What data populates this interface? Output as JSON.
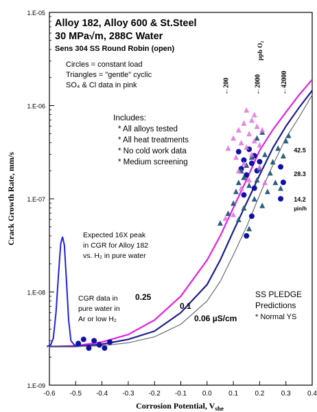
{
  "chart_data": {
    "type": "scatter",
    "title_lines": [
      "Alloy 182, Alloy 600 & St.Steel",
      "30 MPa√m, 288C Water"
    ],
    "subtitle": "Sens 304 SS Round Robin (open)",
    "legend_notes": [
      "Circles = constant load",
      "Triangles = \"gentle\" cyclic",
      "SO₄ & Cl data in pink"
    ],
    "includes_title": "Includes:",
    "includes_items": [
      "All alloys tested",
      "All heat treatments",
      "No cold work data",
      "Medium screening"
    ],
    "xlabel": "Corrosion Potential, V",
    "xlabel_sub": "she",
    "ylabel": "Crack Growth Rate, mm/s",
    "x_ticks": [
      "-0.6",
      "-0.5",
      "-0.4",
      "-0.3",
      "-0.2",
      "-0.1",
      "0.0",
      "0.1",
      "0.2",
      "0.3",
      "0.4"
    ],
    "y_ticks": [
      "1.E-09",
      "1.E-08",
      "1.E-07",
      "1.E-06",
      "1.E-05"
    ],
    "xlim": [
      -0.6,
      0.4
    ],
    "ylim_log10": [
      -9,
      -5
    ],
    "ppb_label": "ppb O₂",
    "ppb_markers": [
      {
        "label": "200",
        "x": 0.07
      },
      {
        "label": "2000",
        "x": 0.19
      },
      {
        "label": "42000",
        "x": 0.29
      }
    ],
    "curves": [
      {
        "label": "0.25",
        "color": "#e020e0",
        "points": [
          [
            -0.6,
            2.6e-09
          ],
          [
            -0.5,
            2.65e-09
          ],
          [
            -0.4,
            2.9e-09
          ],
          [
            -0.3,
            3.5e-09
          ],
          [
            -0.2,
            5e-09
          ],
          [
            -0.1,
            9e-09
          ],
          [
            0.0,
            2.2e-08
          ],
          [
            0.05,
            4e-08
          ],
          [
            0.1,
            8e-08
          ],
          [
            0.15,
            1.6e-07
          ],
          [
            0.2,
            3.3e-07
          ],
          [
            0.25,
            5.5e-07
          ],
          [
            0.3,
            8.5e-07
          ],
          [
            0.35,
            1.3e-06
          ],
          [
            0.4,
            1.9e-06
          ]
        ]
      },
      {
        "label": "0.1",
        "color": "#1c1c8c",
        "points": [
          [
            -0.6,
            2.6e-09
          ],
          [
            -0.5,
            2.6e-09
          ],
          [
            -0.4,
            2.75e-09
          ],
          [
            -0.3,
            3.1e-09
          ],
          [
            -0.2,
            3.8e-09
          ],
          [
            -0.1,
            6e-09
          ],
          [
            0.0,
            1.2e-08
          ],
          [
            0.05,
            2.2e-08
          ],
          [
            0.1,
            4.5e-08
          ],
          [
            0.15,
            9e-08
          ],
          [
            0.2,
            1.8e-07
          ],
          [
            0.25,
            3.5e-07
          ],
          [
            0.3,
            6e-07
          ],
          [
            0.35,
            9.5e-07
          ],
          [
            0.4,
            1.45e-06
          ]
        ]
      },
      {
        "label": "0.06 µS/cm",
        "color": "#6a6a6a",
        "points": [
          [
            -0.6,
            2.6e-09
          ],
          [
            -0.5,
            2.6e-09
          ],
          [
            -0.4,
            2.65e-09
          ],
          [
            -0.3,
            2.85e-09
          ],
          [
            -0.2,
            3.3e-09
          ],
          [
            -0.1,
            4.5e-09
          ],
          [
            0.0,
            8e-09
          ],
          [
            0.05,
            1.3e-08
          ],
          [
            0.1,
            2.5e-08
          ],
          [
            0.15,
            5e-08
          ],
          [
            0.2,
            1.1e-07
          ],
          [
            0.25,
            2.3e-07
          ],
          [
            0.3,
            4.5e-07
          ],
          [
            0.35,
            7.5e-07
          ],
          [
            0.4,
            1.3e-06
          ]
        ]
      }
    ],
    "peak_curve": {
      "color": "#2020e0",
      "points": [
        [
          -0.61,
          2.6e-09
        ],
        [
          -0.595,
          2.7e-09
        ],
        [
          -0.585,
          3.2e-09
        ],
        [
          -0.575,
          6e-09
        ],
        [
          -0.565,
          1.6e-08
        ],
        [
          -0.557,
          3.3e-08
        ],
        [
          -0.55,
          3.9e-08
        ],
        [
          -0.543,
          3.2e-08
        ],
        [
          -0.535,
          1.3e-08
        ],
        [
          -0.527,
          5e-09
        ],
        [
          -0.518,
          3e-09
        ],
        [
          -0.505,
          2.7e-09
        ],
        [
          -0.49,
          2.65e-09
        ]
      ]
    },
    "peak_annotation": [
      "Expected 16X peak",
      "in CGR for Alloy 182",
      "vs. H₂ in pure water"
    ],
    "pure_water_annotation": [
      "CGR data in",
      "pure water in",
      "Ar or low H₂"
    ],
    "pledge_annotation": [
      "SS PLEDGE",
      "Predictions",
      "* Normal YS"
    ],
    "right_labels": [
      {
        "text": "42.5",
        "x": 0.33,
        "y": 3.3e-07
      },
      {
        "text": "28.3",
        "x": 0.33,
        "y": 1.85e-07
      },
      {
        "text": "14.2",
        "x": 0.33,
        "y": 9.8e-08
      },
      {
        "text": "µin/h",
        "x": 0.33,
        "y": 7.9e-08
      }
    ],
    "series": [
      {
        "name": "",
        "marker": "circle",
        "color": "#1010a8",
        "points": [
          [
            -0.49,
            2.8e-09
          ],
          [
            -0.47,
            3.1e-09
          ],
          [
            -0.45,
            2.5e-09
          ],
          [
            -0.43,
            3e-09
          ],
          [
            -0.41,
            2.7e-09
          ],
          [
            -0.39,
            2.5e-09
          ],
          [
            -0.37,
            2.9e-09
          ],
          [
            0.12,
            3.2e-07
          ],
          [
            0.13,
            2.1e-07
          ],
          [
            0.14,
            2.6e-07
          ],
          [
            0.15,
            1.8e-07
          ],
          [
            0.16,
            3.4e-07
          ],
          [
            0.17,
            2.4e-07
          ],
          [
            0.18,
            2.9e-07
          ],
          [
            0.18,
            1.3e-07
          ],
          [
            0.19,
            2e-07
          ],
          [
            0.2,
            2.5e-07
          ],
          [
            0.15,
            4e-08
          ],
          [
            0.17,
            6.5e-08
          ],
          [
            0.28,
            2.2e-07
          ],
          [
            0.29,
            1.5e-07
          ],
          [
            0.28,
            1e-07
          ],
          [
            0.14,
            1.1e-07
          ]
        ]
      },
      {
        "name": "",
        "marker": "triangle",
        "color": "#2a5f7f",
        "points": [
          [
            0.05,
            5.5e-08
          ],
          [
            0.08,
            7e-08
          ],
          [
            0.1,
            9e-08
          ],
          [
            0.11,
            1.2e-07
          ],
          [
            0.12,
            1.5e-07
          ],
          [
            0.13,
            2e-07
          ],
          [
            0.14,
            1.7e-07
          ],
          [
            0.14,
            8e-08
          ],
          [
            0.15,
            2.3e-07
          ],
          [
            0.16,
            1.4e-07
          ],
          [
            0.17,
            2.8e-07
          ],
          [
            0.18,
            1e-07
          ],
          [
            0.19,
            1.6e-07
          ],
          [
            0.2,
            2.1e-07
          ],
          [
            0.21,
            8.5e-08
          ],
          [
            0.22,
            3e-07
          ],
          [
            0.23,
            1.2e-07
          ],
          [
            0.25,
            2.5e-07
          ],
          [
            0.26,
            1.5e-07
          ],
          [
            0.27,
            3.5e-07
          ],
          [
            0.3,
            4.2e-07
          ],
          [
            0.31,
            4.8e-07
          ],
          [
            0.29,
            2.9e-07
          ],
          [
            0.28,
            1.3e-07
          ],
          [
            0.12,
            6e-08
          ],
          [
            0.16,
            4.8e-08
          ],
          [
            0.19,
            4.5e-07
          ],
          [
            0.21,
            5.2e-07
          ],
          [
            0.24,
            1.9e-07
          ]
        ]
      },
      {
        "name": "",
        "marker": "triangle",
        "color": "#e070e0",
        "points": [
          [
            0.08,
            3.5e-07
          ],
          [
            0.1,
            4.5e-07
          ],
          [
            0.11,
            2.8e-07
          ],
          [
            0.12,
            5.5e-07
          ],
          [
            0.13,
            4e-07
          ],
          [
            0.14,
            6.5e-07
          ],
          [
            0.15,
            3.6e-07
          ],
          [
            0.16,
            5e-07
          ],
          [
            0.17,
            7e-07
          ],
          [
            0.17,
            3e-07
          ],
          [
            0.18,
            4.2e-07
          ],
          [
            0.19,
            6e-07
          ],
          [
            0.2,
            3.8e-07
          ],
          [
            0.2,
            2.2e-07
          ],
          [
            0.21,
            5.5e-07
          ],
          [
            0.12,
            2e-07
          ],
          [
            0.14,
            2.4e-07
          ],
          [
            0.16,
            1.6e-07
          ],
          [
            0.18,
            8e-07
          ],
          [
            0.1,
            6.8e-08
          ],
          [
            0.07,
            6.2e-08
          ],
          [
            0.13,
            1.3e-07
          ],
          [
            0.22,
            1.5e-07
          ],
          [
            0.15,
            9e-07
          ]
        ]
      }
    ],
    "grid": false
  }
}
